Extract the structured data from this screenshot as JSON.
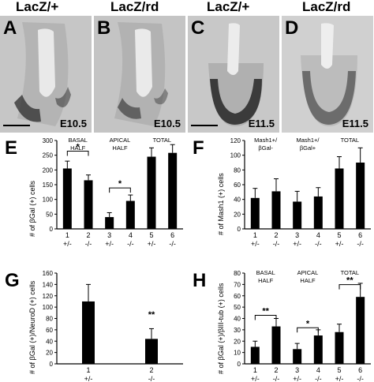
{
  "micrographs": [
    {
      "panel": "A",
      "header": "LacZ/+",
      "stage": "E10.5",
      "scale_bar": true
    },
    {
      "panel": "B",
      "header": "LacZ/rd",
      "stage": "E10.5",
      "scale_bar": false
    },
    {
      "panel": "C",
      "header": "LacZ/+",
      "stage": "E11.5",
      "scale_bar": true
    },
    {
      "panel": "D",
      "header": "LacZ/rd",
      "stage": "E11.5",
      "scale_bar": false
    }
  ],
  "chart_data": [
    {
      "panel": "E",
      "type": "bar",
      "ylabel": "# of βGal (+) cells",
      "ylim": [
        0,
        300
      ],
      "yticks": [
        "0",
        "50",
        "100",
        "150",
        "200",
        "250",
        "300"
      ],
      "groups": [
        {
          "label": [
            "BASAL",
            "HALF"
          ],
          "bars": [
            0,
            1
          ]
        },
        {
          "label": [
            "APICAL",
            "HALF"
          ],
          "bars": [
            2,
            3
          ]
        },
        {
          "label": [
            "TOTAL"
          ],
          "bars": [
            4,
            5
          ]
        }
      ],
      "categories": [
        {
          "num": "1",
          "geno": "+/-"
        },
        {
          "num": "2",
          "geno": "-/-"
        },
        {
          "num": "3",
          "geno": "+/-"
        },
        {
          "num": "4",
          "geno": "-/-"
        },
        {
          "num": "5",
          "geno": "+/-"
        },
        {
          "num": "6",
          "geno": "-/-"
        }
      ],
      "values": [
        205,
        165,
        40,
        95,
        245,
        258
      ],
      "errors": [
        25,
        18,
        15,
        20,
        30,
        28
      ],
      "significance": [
        {
          "from": 0,
          "to": 1,
          "mark": "*",
          "y": 280
        },
        {
          "from": 2,
          "to": 3,
          "mark": "*",
          "y": 155
        }
      ]
    },
    {
      "panel": "F",
      "type": "bar",
      "ylabel": "# of Mash1 (+) cells",
      "ylim": [
        0,
        120
      ],
      "yticks": [
        "0",
        "20",
        "40",
        "60",
        "80",
        "100",
        "120"
      ],
      "groups": [
        {
          "label": [
            "Mash1+/",
            "βGal-"
          ],
          "bars": [
            0,
            1
          ]
        },
        {
          "label": [
            "Mash1+/",
            "βGal+"
          ],
          "bars": [
            2,
            3
          ]
        },
        {
          "label": [
            "TOTAL"
          ],
          "bars": [
            4,
            5
          ]
        }
      ],
      "categories": [
        {
          "num": "1",
          "geno": "+/-"
        },
        {
          "num": "2",
          "geno": "-/-"
        },
        {
          "num": "3",
          "geno": "+/-"
        },
        {
          "num": "4",
          "geno": "-/-"
        },
        {
          "num": "5",
          "geno": "+/-"
        },
        {
          "num": "6",
          "geno": "-/-"
        }
      ],
      "values": [
        42,
        51,
        37,
        44,
        82,
        90
      ],
      "errors": [
        13,
        17,
        14,
        12,
        16,
        20
      ],
      "significance": []
    },
    {
      "panel": "G",
      "type": "bar",
      "ylabel": "# of βGal (+)/NeuroD (+) cells",
      "ylim": [
        0,
        160
      ],
      "yticks": [
        "0",
        "20",
        "40",
        "60",
        "80",
        "100",
        "120",
        "140",
        "160"
      ],
      "groups": [],
      "categories": [
        {
          "num": "1",
          "geno": "+/-"
        },
        {
          "num": "2",
          "geno": "-/-"
        }
      ],
      "values": [
        110,
        44
      ],
      "errors": [
        30,
        18
      ],
      "significance": [
        {
          "bar": 1,
          "mark": "**",
          "y": 82
        }
      ]
    },
    {
      "panel": "H",
      "type": "bar",
      "ylabel": "# of βGal (+)/βIII-tub (+) cells",
      "ylim": [
        0,
        80
      ],
      "yticks": [
        "0",
        "10",
        "20",
        "30",
        "40",
        "50",
        "60",
        "70",
        "80"
      ],
      "groups": [
        {
          "label": [
            "BASAL",
            "HALF"
          ],
          "bars": [
            0,
            1
          ]
        },
        {
          "label": [
            "APICAL",
            "HALF"
          ],
          "bars": [
            2,
            3
          ]
        },
        {
          "label": [
            "TOTAL"
          ],
          "bars": [
            4,
            5
          ]
        }
      ],
      "categories": [
        {
          "num": "1",
          "geno": "+/-"
        },
        {
          "num": "2",
          "geno": "-/-"
        },
        {
          "num": "3",
          "geno": "+/-"
        },
        {
          "num": "4",
          "geno": "-/-"
        },
        {
          "num": "5",
          "geno": "+/-"
        },
        {
          "num": "6",
          "geno": "-/-"
        }
      ],
      "values": [
        15,
        33,
        13,
        25,
        28,
        59
      ],
      "errors": [
        5,
        7,
        5,
        5,
        7,
        12
      ],
      "significance": [
        {
          "from": 0,
          "to": 1,
          "mark": "**",
          "y": 47
        },
        {
          "from": 2,
          "to": 3,
          "mark": "*",
          "y": 36
        },
        {
          "from": 4,
          "to": 5,
          "mark": "**",
          "y": 74
        }
      ]
    }
  ]
}
